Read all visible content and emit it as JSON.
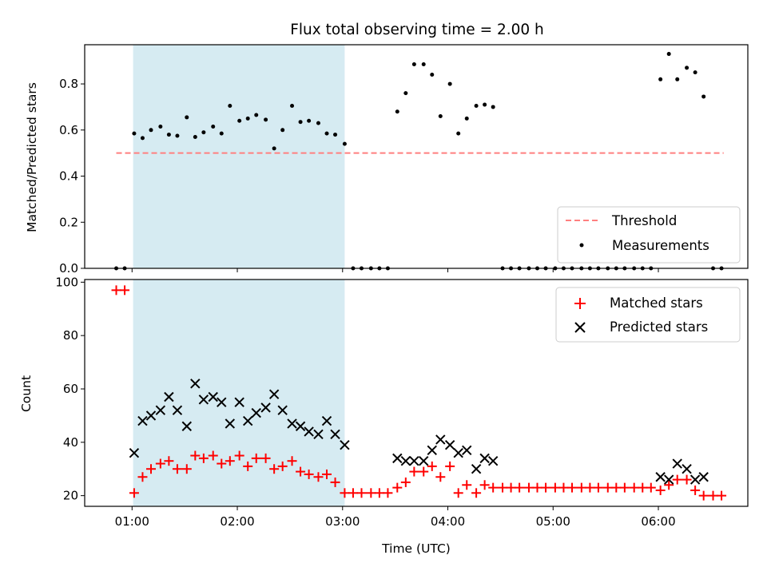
{
  "chart_data": {
    "title": "Flux total observing time = 2.00 h",
    "xlabel": "Time (UTC)",
    "x_ticks": [
      "01:00",
      "02:00",
      "03:00",
      "04:00",
      "05:00",
      "06:00"
    ],
    "x_range_hours": [
      0.55,
      6.85
    ],
    "shaded_interval_hours": [
      1.01,
      3.02
    ],
    "shade_color": "#add8e6",
    "panels": [
      {
        "type": "scatter",
        "ylabel": "Matched/Predicted stars",
        "ylim": [
          0,
          0.97
        ],
        "y_ticks": [
          "0.0",
          "0.2",
          "0.4",
          "0.6",
          "0.8"
        ],
        "threshold": {
          "name": "Threshold",
          "value": 0.5,
          "x_range_hours": [
            0.85,
            6.62
          ],
          "color": "#ff7f7f"
        },
        "measurements": {
          "name": "Measurements",
          "color": "#000000",
          "x": [
            0.85,
            0.93,
            1.02,
            1.1,
            1.18,
            1.27,
            1.35,
            1.43,
            1.52,
            1.6,
            1.68,
            1.77,
            1.85,
            1.93,
            2.02,
            2.1,
            2.18,
            2.27,
            2.35,
            2.43,
            2.52,
            2.6,
            2.68,
            2.77,
            2.85,
            2.93,
            3.02,
            3.1,
            3.18,
            3.27,
            3.35,
            3.43,
            3.52,
            3.6,
            3.68,
            3.77,
            3.85,
            3.93,
            4.02,
            4.1,
            4.18,
            4.27,
            4.35,
            4.43,
            4.52,
            4.6,
            4.68,
            4.77,
            4.85,
            4.93,
            5.02,
            5.1,
            5.18,
            5.27,
            5.35,
            5.43,
            5.52,
            5.6,
            5.68,
            5.77,
            5.85,
            5.93,
            6.02,
            6.1,
            6.18,
            6.27,
            6.35,
            6.43,
            6.52,
            6.6
          ],
          "y": [
            0.0,
            0.0,
            0.585,
            0.565,
            0.6,
            0.615,
            0.58,
            0.575,
            0.655,
            0.57,
            0.59,
            0.615,
            0.585,
            0.705,
            0.64,
            0.65,
            0.665,
            0.645,
            0.52,
            0.6,
            0.705,
            0.635,
            0.64,
            0.63,
            0.585,
            0.58,
            0.54,
            0.0,
            0.0,
            0.0,
            0.0,
            0.0,
            0.68,
            0.76,
            0.885,
            0.885,
            0.84,
            0.66,
            0.8,
            0.585,
            0.65,
            0.705,
            0.71,
            0.7,
            0.0,
            0.0,
            0.0,
            0.0,
            0.0,
            0.0,
            0.0,
            0.0,
            0.0,
            0.0,
            0.0,
            0.0,
            0.0,
            0.0,
            0.0,
            0.0,
            0.0,
            0.0,
            0.82,
            0.93,
            0.82,
            0.87,
            0.85,
            0.745,
            0.0,
            0.0
          ]
        },
        "legend": {
          "placement": "lower-right",
          "entries": [
            "Threshold",
            "Measurements"
          ]
        }
      },
      {
        "type": "scatter",
        "ylabel": "Count",
        "ylim": [
          16,
          101
        ],
        "y_ticks": [
          "20",
          "40",
          "60",
          "80",
          "100"
        ],
        "series": [
          {
            "name": "Matched stars",
            "marker": "plus",
            "color": "#ff0000",
            "x": [
              0.85,
              0.93,
              1.02,
              1.1,
              1.18,
              1.27,
              1.35,
              1.43,
              1.52,
              1.6,
              1.68,
              1.77,
              1.85,
              1.93,
              2.02,
              2.1,
              2.18,
              2.27,
              2.35,
              2.43,
              2.52,
              2.6,
              2.68,
              2.77,
              2.85,
              2.93,
              3.02,
              3.1,
              3.18,
              3.27,
              3.35,
              3.43,
              3.52,
              3.6,
              3.68,
              3.77,
              3.85,
              3.93,
              4.02,
              4.1,
              4.18,
              4.27,
              4.35,
              4.43,
              4.52,
              4.6,
              4.68,
              4.77,
              4.85,
              4.93,
              5.02,
              5.1,
              5.18,
              5.27,
              5.35,
              5.43,
              5.52,
              5.6,
              5.68,
              5.77,
              5.85,
              5.93,
              6.02,
              6.1,
              6.18,
              6.27,
              6.35,
              6.43,
              6.52,
              6.6
            ],
            "y": [
              97,
              97,
              21,
              27,
              30,
              32,
              33,
              30,
              30,
              35,
              34,
              35,
              32,
              33,
              35,
              31,
              34,
              34,
              30,
              31,
              33,
              29,
              28,
              27,
              28,
              25,
              21,
              21,
              21,
              21,
              21,
              21,
              23,
              25,
              29,
              29,
              31,
              27,
              31,
              21,
              24,
              21,
              24,
              23,
              23,
              23,
              23,
              23,
              23,
              23,
              23,
              23,
              23,
              23,
              23,
              23,
              23,
              23,
              23,
              23,
              23,
              23,
              22,
              24,
              26,
              26,
              22,
              20,
              20,
              20
            ]
          },
          {
            "name": "Predicted stars",
            "marker": "x",
            "color": "#000000",
            "x": [
              1.02,
              1.1,
              1.18,
              1.27,
              1.35,
              1.43,
              1.52,
              1.6,
              1.68,
              1.77,
              1.85,
              1.93,
              2.02,
              2.1,
              2.18,
              2.27,
              2.35,
              2.43,
              2.52,
              2.6,
              2.68,
              2.77,
              2.85,
              2.93,
              3.02,
              3.52,
              3.6,
              3.68,
              3.77,
              3.85,
              3.93,
              4.02,
              4.1,
              4.18,
              4.27,
              4.35,
              4.43,
              6.02,
              6.1,
              6.18,
              6.27,
              6.35,
              6.43
            ],
            "y": [
              36,
              48,
              50,
              52,
              57,
              52,
              46,
              62,
              56,
              57,
              55,
              47,
              55,
              48,
              51,
              53,
              58,
              52,
              47,
              46,
              44,
              43,
              48,
              43,
              39,
              34,
              33,
              33,
              33,
              37,
              41,
              39,
              36,
              37,
              30,
              34,
              33,
              27,
              26,
              32,
              30,
              26,
              27
            ]
          }
        ],
        "legend": {
          "placement": "upper-right",
          "entries": [
            "Matched stars",
            "Predicted stars"
          ]
        }
      }
    ]
  }
}
